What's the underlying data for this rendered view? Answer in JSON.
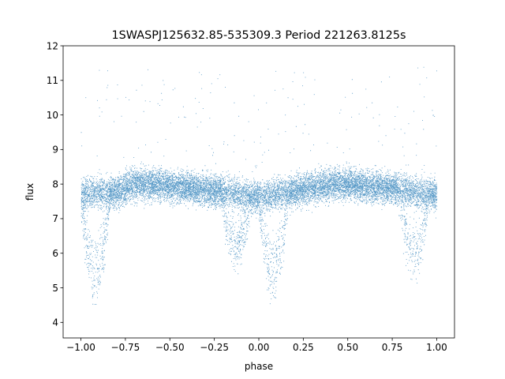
{
  "chart_data": {
    "type": "scatter",
    "title": "1SWASPJ125632.85-535309.3 Period 221263.8125s",
    "xlabel": "phase",
    "ylabel": "flux",
    "xlim": [
      -1.1,
      1.1
    ],
    "ylim": [
      3.55,
      12.0
    ],
    "xticks": [
      -1.0,
      -0.75,
      -0.5,
      -0.25,
      0.0,
      0.25,
      0.5,
      0.75,
      1.0
    ],
    "xtick_labels": [
      "−1.00",
      "−0.75",
      "−0.50",
      "−0.25",
      "0.00",
      "0.25",
      "0.50",
      "0.75",
      "1.00"
    ],
    "yticks": [
      4,
      5,
      6,
      7,
      8,
      9,
      10,
      11,
      12
    ],
    "ytick_labels": [
      "4",
      "5",
      "6",
      "7",
      "8",
      "9",
      "10",
      "11",
      "12"
    ],
    "grid": false,
    "marker_color": "#1f77b4",
    "series": [
      {
        "light_curve_profile": {
          "phase": [
            -1.0,
            -0.95,
            -0.9,
            -0.85,
            -0.8,
            -0.75,
            -0.7,
            -0.6,
            -0.5,
            -0.4,
            -0.3,
            -0.2,
            -0.15,
            -0.1,
            -0.05,
            0.0,
            0.05,
            0.1,
            0.15,
            0.2,
            0.3,
            0.4,
            0.5,
            0.6,
            0.7,
            0.8,
            0.85,
            0.9,
            0.95,
            1.0
          ],
          "flux_baseline": [
            7.7,
            7.75,
            7.75,
            7.75,
            7.8,
            7.9,
            8.0,
            8.0,
            7.95,
            7.9,
            7.85,
            7.8,
            7.75,
            7.7,
            7.65,
            7.65,
            7.65,
            7.7,
            7.75,
            7.8,
            7.9,
            8.0,
            8.0,
            7.95,
            7.9,
            7.85,
            7.8,
            7.75,
            7.7,
            7.7
          ],
          "eclipse_phases": [
            -0.92,
            -0.13,
            0.08,
            0.87
          ],
          "eclipse_min_flux": [
            5.0,
            5.9,
            5.0,
            5.6
          ]
        }
      }
    ]
  }
}
